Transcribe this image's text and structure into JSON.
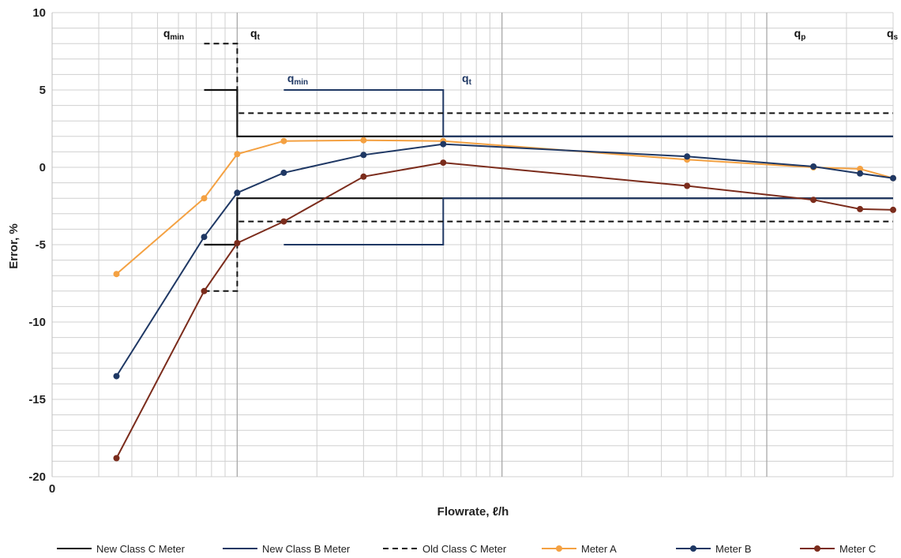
{
  "chart_data": {
    "type": "line",
    "title": "",
    "xlabel": "Flowrate, ℓ/h",
    "ylabel": "Error, %",
    "x_origin_label": "0",
    "x_scale": "log",
    "ylim": [
      -20,
      10
    ],
    "yticks": [
      10,
      5,
      0,
      -5,
      -10,
      -15,
      -20
    ],
    "grid": true,
    "legend_position": "bottom",
    "legend": [
      {
        "name": "New Class C Meter",
        "color": "#111111",
        "style": "solid"
      },
      {
        "name": "New Class B Meter",
        "color": "#1f3864",
        "style": "solid"
      },
      {
        "name": "Old Class C Meter",
        "color": "#111111",
        "style": "dashed"
      },
      {
        "name": "Meter A",
        "color": "#f4a142",
        "style": "solid-marker"
      },
      {
        "name": "Meter B",
        "color": "#1f3864",
        "style": "solid-marker"
      },
      {
        "name": "Meter C",
        "color": "#7b2c1c",
        "style": "solid-marker"
      }
    ],
    "annotations": [
      {
        "text": "q",
        "sub": "min",
        "color": "#111111"
      },
      {
        "text": "q",
        "sub": "t",
        "color": "#111111"
      },
      {
        "text": "q",
        "sub": "min",
        "color": "#1f3864"
      },
      {
        "text": "q",
        "sub": "t",
        "color": "#1f3864"
      },
      {
        "text": "q",
        "sub": "p",
        "color": "#111111"
      },
      {
        "text": "q",
        "sub": "s",
        "color": "#111111"
      }
    ],
    "series": [
      {
        "name": "Meter A",
        "color": "#f4a142",
        "x": [
          3.5,
          7.5,
          10,
          15,
          30,
          60,
          500,
          1500,
          2250,
          3000
        ],
        "y": [
          -6.9,
          -2.0,
          0.85,
          1.7,
          1.75,
          1.7,
          0.5,
          0.0,
          -0.1,
          -0.7
        ]
      },
      {
        "name": "Meter B",
        "color": "#1f3864",
        "x": [
          3.5,
          7.5,
          10,
          15,
          30,
          60,
          500,
          1500,
          2250,
          3000
        ],
        "y": [
          -13.5,
          -4.5,
          -1.65,
          -0.35,
          0.8,
          1.5,
          0.7,
          0.05,
          -0.4,
          -0.7
        ]
      },
      {
        "name": "Meter C",
        "color": "#7b2c1c",
        "x": [
          3.5,
          7.5,
          10,
          15,
          30,
          60,
          500,
          1500,
          2250,
          3000
        ],
        "y": [
          -18.8,
          -8.0,
          -4.9,
          -3.5,
          -0.6,
          0.3,
          -1.2,
          -2.1,
          -2.7,
          -2.75
        ]
      }
    ],
    "limits": [
      {
        "name": "New Class C Meter",
        "color": "#111111",
        "dashed": false,
        "width": 2.2,
        "upper": [
          [
            7.5,
            5
          ],
          [
            10,
            5
          ],
          [
            10,
            2
          ],
          [
            3000,
            2
          ]
        ],
        "lower": [
          [
            7.5,
            -5
          ],
          [
            10,
            -5
          ],
          [
            10,
            -2
          ],
          [
            3000,
            -2
          ]
        ]
      },
      {
        "name": "New Class B Meter",
        "color": "#1f3864",
        "dashed": false,
        "width": 2,
        "upper": [
          [
            15,
            5
          ],
          [
            60,
            5
          ],
          [
            60,
            2
          ],
          [
            3000,
            2
          ]
        ],
        "lower": [
          [
            15,
            -5
          ],
          [
            60,
            -5
          ],
          [
            60,
            -2
          ],
          [
            3000,
            -2
          ]
        ]
      },
      {
        "name": "Old Class C Meter",
        "color": "#111111",
        "dashed": true,
        "width": 2,
        "upper": [
          [
            7.5,
            8
          ],
          [
            10,
            8
          ],
          [
            10,
            3.5
          ],
          [
            3000,
            3.5
          ]
        ],
        "lower": [
          [
            7.5,
            -8
          ],
          [
            10,
            -8
          ],
          [
            10,
            -3.5
          ],
          [
            3000,
            -3.5
          ]
        ]
      }
    ]
  }
}
